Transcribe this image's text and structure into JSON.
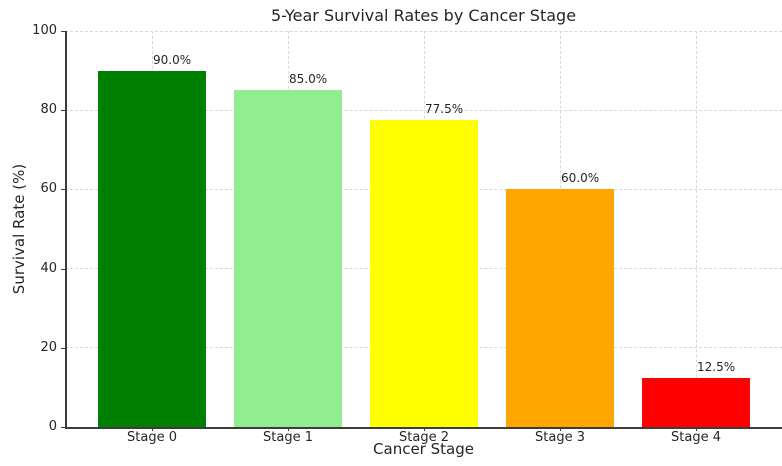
{
  "chart_data": {
    "type": "bar",
    "title": "5-Year Survival Rates by Cancer Stage",
    "xlabel": "Cancer Stage",
    "ylabel": "Survival Rate (%)",
    "categories": [
      "Stage 0",
      "Stage 1",
      "Stage 2",
      "Stage 3",
      "Stage 4"
    ],
    "values": [
      90.0,
      85.0,
      77.5,
      60.0,
      12.5
    ],
    "bar_labels": [
      "90.0%",
      "85.0%",
      "77.5%",
      "60.0%",
      "12.5%"
    ],
    "bar_colors": [
      "#008000",
      "#90ee90",
      "#ffff00",
      "#ffa500",
      "#ff0000"
    ],
    "yticks": [
      0,
      20,
      40,
      60,
      80,
      100
    ],
    "ylim": [
      0,
      100
    ],
    "grid": true,
    "grid_style": "dashed",
    "grid_color": "#d8d8d8",
    "spine_color": "#3c3c3c",
    "legend": "none",
    "background_color": "#ffffff"
  }
}
